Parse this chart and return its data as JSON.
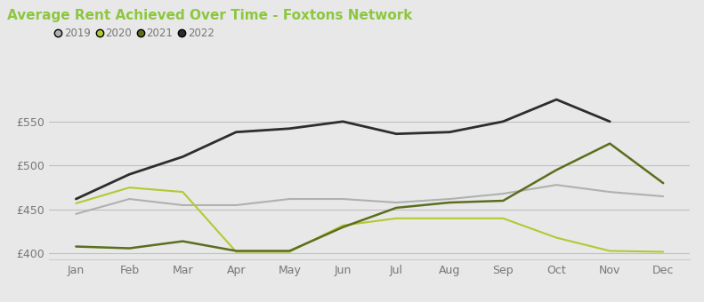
{
  "title": "Average Rent Achieved Over Time - Foxtons Network",
  "title_color": "#8dc63f",
  "background_color": "#e8e8e8",
  "plot_background_color": "#e8e8e8",
  "months": [
    "Jan",
    "Feb",
    "Mar",
    "Apr",
    "May",
    "Jun",
    "Jul",
    "Aug",
    "Sep",
    "Oct",
    "Nov",
    "Dec"
  ],
  "series_order": [
    "2019",
    "2020",
    "2021",
    "2022"
  ],
  "series": {
    "2019": {
      "values": [
        445,
        462,
        455,
        455,
        462,
        462,
        458,
        462,
        468,
        478,
        470,
        465
      ],
      "color": "#b0b0b0",
      "linewidth": 1.5
    },
    "2020": {
      "values": [
        457,
        475,
        470,
        402,
        402,
        432,
        440,
        440,
        440,
        418,
        403,
        402
      ],
      "color": "#b5c832",
      "linewidth": 1.5
    },
    "2021": {
      "values": [
        408,
        406,
        414,
        403,
        403,
        430,
        452,
        458,
        460,
        495,
        525,
        480
      ],
      "color": "#5a6e1e",
      "linewidth": 1.8
    },
    "2022": {
      "values": [
        462,
        490,
        510,
        538,
        542,
        550,
        536,
        538,
        550,
        575,
        550,
        null
      ],
      "color": "#2d2d2d",
      "linewidth": 2.0
    }
  },
  "ylim": [
    393,
    592
  ],
  "yticks": [
    400,
    450,
    500,
    550
  ],
  "ytick_labels": [
    "£400",
    "£450",
    "£500",
    "£550"
  ],
  "legend_labels": [
    "2019",
    "2020",
    "2021",
    "2022"
  ],
  "legend_colors": [
    "#b0b0b0",
    "#b5c832",
    "#5a6e1e",
    "#2d2d2d"
  ],
  "xlabel_fontsize": 9,
  "ylabel_fontsize": 9,
  "title_fontsize": 11,
  "legend_fontsize": 8.5
}
